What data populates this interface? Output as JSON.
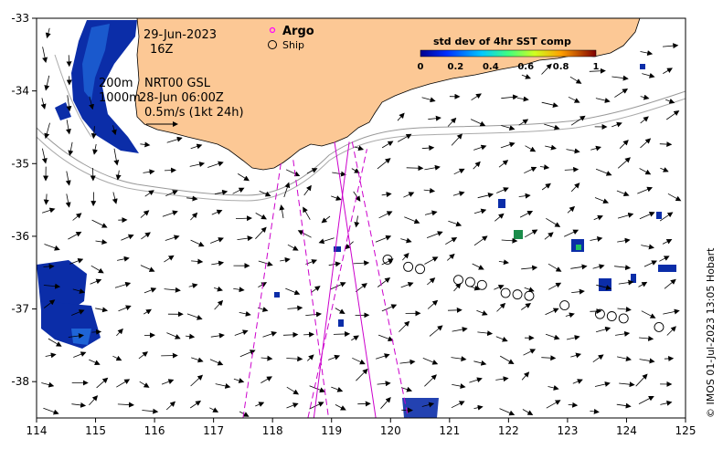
{
  "map": {
    "date": "29-Jun-2023",
    "hour": "16Z",
    "depth_labels": [
      "200m",
      "1000m"
    ],
    "product": "NRT00 GSL",
    "product_time": "28-Jun 06:00Z",
    "scale_label": "0.5m/s (1kt 24h)",
    "legend": {
      "argo_label": "Argo",
      "ship_label": "Ship"
    },
    "colorbar": {
      "title": "std dev of 4hr SST comp",
      "ticks": [
        "0",
        "0.2",
        "0.4",
        "0.6",
        "0.8",
        "1"
      ]
    },
    "credit": "© IMOS 01-Jul-2023 13:05 Hobart",
    "x_ticks": [
      "114",
      "115",
      "116",
      "117",
      "118",
      "119",
      "120",
      "121",
      "122",
      "123",
      "124",
      "125"
    ],
    "y_ticks": [
      "-33",
      "-34",
      "-35",
      "-36",
      "-37",
      "-38"
    ],
    "lon_range": [
      114,
      125
    ],
    "lat_range": [
      -38.5,
      -33
    ],
    "colors": {
      "land": "#fcc895",
      "track": "#cc00cc",
      "argo": "#ff00ff"
    },
    "ships": [
      [
        119.95,
        -36.32
      ],
      [
        120.3,
        -36.42
      ],
      [
        120.5,
        -36.45
      ],
      [
        121.15,
        -36.6
      ],
      [
        121.35,
        -36.63
      ],
      [
        121.55,
        -36.67
      ],
      [
        121.95,
        -36.78
      ],
      [
        122.15,
        -36.8
      ],
      [
        122.35,
        -36.82
      ],
      [
        122.95,
        -36.95
      ],
      [
        123.55,
        -37.07
      ],
      [
        123.75,
        -37.1
      ],
      [
        123.95,
        -37.13
      ],
      [
        124.55,
        -37.25
      ]
    ],
    "tracks": [
      {
        "style": "solid",
        "points": [
          [
            119.05,
            -34.7
          ],
          [
            119.75,
            -38.5
          ]
        ]
      },
      {
        "style": "solid",
        "points": [
          [
            118.7,
            -38.5
          ],
          [
            119.3,
            -34.7
          ]
        ]
      },
      {
        "style": "dashed",
        "points": [
          [
            118.35,
            -34.95
          ],
          [
            118.95,
            -38.5
          ]
        ]
      },
      {
        "style": "dashed",
        "points": [
          [
            117.5,
            -38.5
          ],
          [
            118.15,
            -34.95
          ]
        ]
      },
      {
        "style": "dashed",
        "points": [
          [
            118.6,
            -38.5
          ],
          [
            119.6,
            -34.8
          ]
        ]
      },
      {
        "style": "dashed",
        "points": [
          [
            119.35,
            -34.7
          ],
          [
            120.3,
            -38.5
          ]
        ]
      }
    ]
  }
}
